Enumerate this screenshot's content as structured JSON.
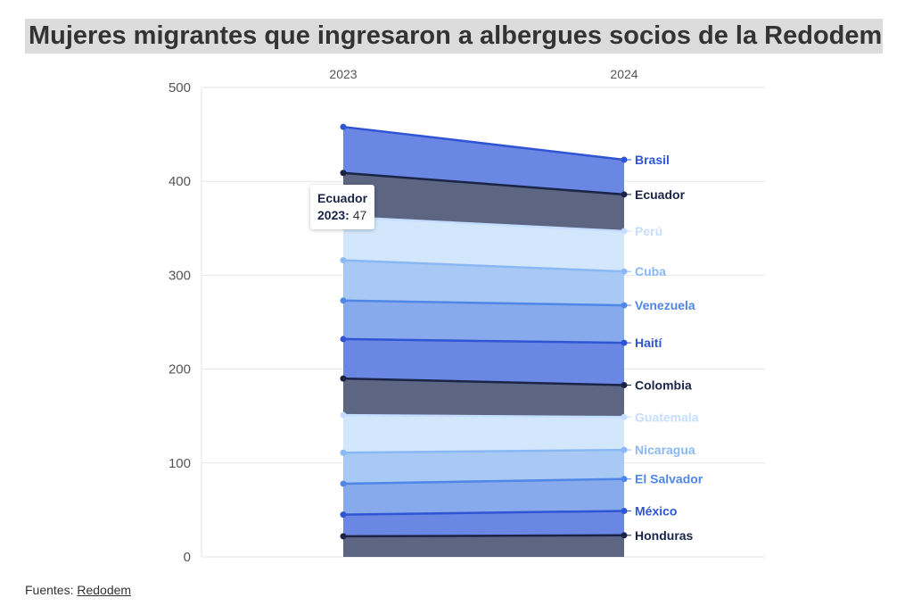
{
  "title": "Mujeres migrantes que ingresaron a albergues socios de la Redodem",
  "source": {
    "label": "Fuentes:",
    "link": "Redodem"
  },
  "tooltip": {
    "series": "Ecuador",
    "year": "2023:",
    "value": "47"
  },
  "chart_data": {
    "type": "area",
    "stacked": true,
    "title": "Mujeres migrantes que ingresaron a albergues socios de la Redodem",
    "x": [
      "2023",
      "2024"
    ],
    "ylim": [
      0,
      500
    ],
    "yticks": [
      0,
      100,
      200,
      300,
      400,
      500
    ],
    "grid": true,
    "series": [
      {
        "name": "Honduras",
        "values": [
          22,
          23
        ],
        "line": "#1a2447",
        "fill": "#5c6683"
      },
      {
        "name": "México",
        "values": [
          23,
          26
        ],
        "line": "#2f55d4",
        "fill": "#6a87e3"
      },
      {
        "name": "El Salvador",
        "values": [
          33,
          34
        ],
        "line": "#4f86e8",
        "fill": "#87aaec"
      },
      {
        "name": "Nicaragua",
        "values": [
          33,
          31
        ],
        "line": "#8ab8f5",
        "fill": "#a9c9f5"
      },
      {
        "name": "Guatemala",
        "values": [
          40,
          35
        ],
        "line": "#c5deff",
        "fill": "#d2e6fc"
      },
      {
        "name": "Colombia",
        "values": [
          39,
          34
        ],
        "line": "#1a2447",
        "fill": "#5c6683"
      },
      {
        "name": "Haití",
        "values": [
          42,
          45
        ],
        "line": "#2f55d4",
        "fill": "#6a87e3"
      },
      {
        "name": "Venezuela",
        "values": [
          41,
          40
        ],
        "line": "#4f86e8",
        "fill": "#87aaec"
      },
      {
        "name": "Cuba",
        "values": [
          43,
          36
        ],
        "line": "#8ab8f5",
        "fill": "#a9c9f5"
      },
      {
        "name": "Perú",
        "values": [
          46,
          43
        ],
        "line": "#c5deff",
        "fill": "#d2e6fc"
      },
      {
        "name": "Ecuador",
        "values": [
          47,
          39
        ],
        "line": "#1a2447",
        "fill": "#5c6683"
      },
      {
        "name": "Brasil",
        "values": [
          49,
          37
        ],
        "line": "#2f55d4",
        "fill": "#6a87e3"
      }
    ]
  }
}
